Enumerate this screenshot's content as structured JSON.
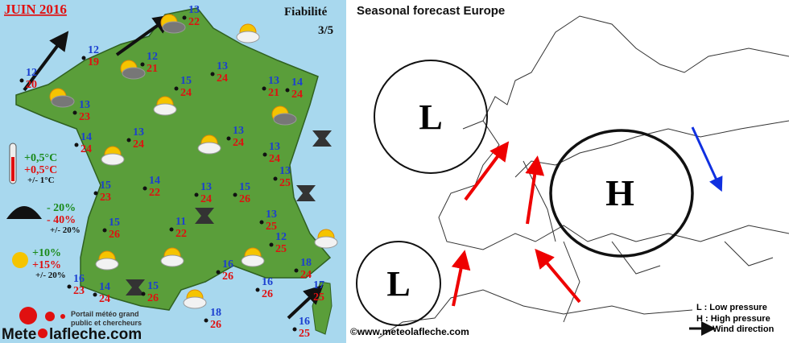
{
  "header": {
    "title": "JUIN 2016",
    "reliability_label": "Fiabilité",
    "reliability": "3/5"
  },
  "cities": [
    {
      "min": 13,
      "max": 22
    },
    {
      "min": 12,
      "max": 19
    },
    {
      "min": 12,
      "max": 21
    },
    {
      "min": 12,
      "max": 20
    },
    {
      "min": 13,
      "max": 23
    },
    {
      "min": 15,
      "max": 24
    },
    {
      "min": 13,
      "max": 24
    },
    {
      "min": 13,
      "max": 21
    },
    {
      "min": 14,
      "max": 24
    },
    {
      "min": 13,
      "max": 24
    },
    {
      "min": 13,
      "max": 24
    },
    {
      "min": 14,
      "max": 24
    },
    {
      "min": 13,
      "max": 24
    },
    {
      "min": 13,
      "max": 25
    },
    {
      "min": 14,
      "max": 22
    },
    {
      "min": 13,
      "max": 24
    },
    {
      "min": 15,
      "max": 26
    },
    {
      "min": 15,
      "max": 23
    },
    {
      "min": 15,
      "max": 26
    },
    {
      "min": 11,
      "max": 22
    },
    {
      "min": 13,
      "max": 25
    },
    {
      "min": 12,
      "max": 25
    },
    {
      "min": 16,
      "max": 26
    },
    {
      "min": 18,
      "max": 24
    },
    {
      "min": 16,
      "max": 23
    },
    {
      "min": 14,
      "max": 24
    },
    {
      "min": 15,
      "max": 26
    },
    {
      "min": 16,
      "max": 26
    },
    {
      "min": 17,
      "max": 25
    },
    {
      "min": 18,
      "max": 26
    },
    {
      "min": 16,
      "max": 25
    }
  ],
  "legend": {
    "temperature": [
      "+0,5°C",
      "+0,5°C",
      "+/- 1°C"
    ],
    "rain": [
      "- 20%",
      "- 40%",
      "+/- 20%"
    ],
    "sun": [
      "+10%",
      "+15%",
      "+/- 20%"
    ]
  },
  "logo": {
    "tagline": [
      "Portail météo grand",
      "public et chercheurs"
    ],
    "name_start": "Mete",
    "name_end": "lafleche.com"
  },
  "europe": {
    "title": "Seasonal  forecast Europe",
    "lows": [
      "L",
      "L"
    ],
    "high": "H",
    "copyright": "©www.meteolafleche.com",
    "legend": [
      "L : Low pressure",
      "H : High pressure",
      "Wind direction"
    ]
  }
}
